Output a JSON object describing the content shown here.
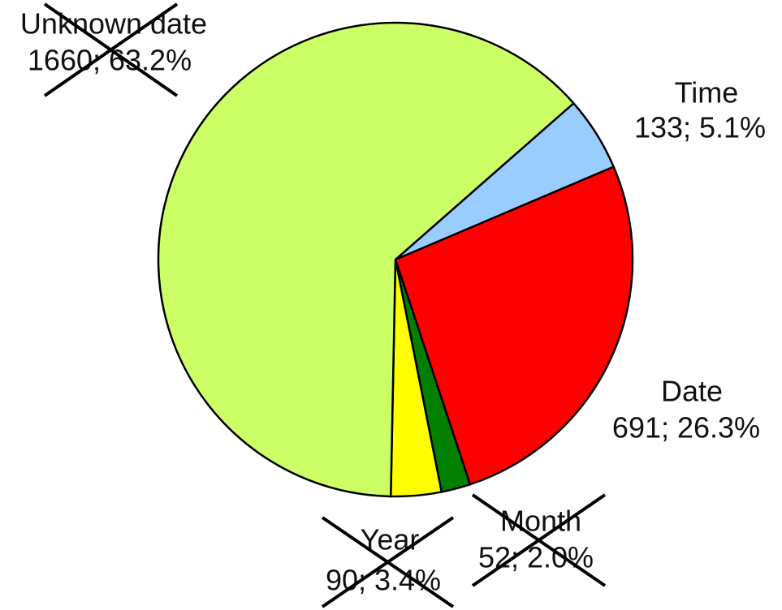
{
  "chart_data": {
    "type": "pie",
    "categories": [
      "Time",
      "Date",
      "Month",
      "Year",
      "Unknown date"
    ],
    "values": [
      133,
      691,
      52,
      90,
      1660
    ],
    "value_labels": [
      "133; 5.1%",
      "691; 26.3%",
      "52; 2.0%",
      "90; 3.4%",
      "1660; 63.2%"
    ],
    "colors": [
      "#99ccff",
      "#ff0000",
      "#007f00",
      "#ffff00",
      "#ccff66"
    ]
  }
}
